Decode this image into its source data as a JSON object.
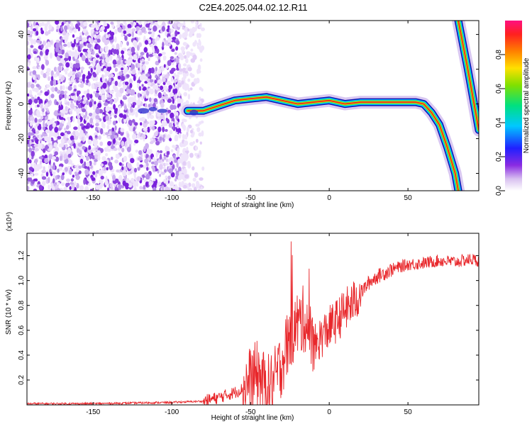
{
  "title": "C2E4.2025.044.02.12.R11",
  "chart_data": [
    {
      "type": "heatmap",
      "title": "C2E4.2025.044.02.12.R11",
      "xlabel": "Height of straight line (km)",
      "ylabel": "Frequency (Hz)",
      "xlim": [
        -192,
        95
      ],
      "ylim": [
        -50,
        48
      ],
      "xticks": [
        -150,
        -100,
        -50,
        0,
        50
      ],
      "yticks": [
        -40,
        -20,
        0,
        20,
        40
      ],
      "noise_region_x": [
        -192,
        -80
      ],
      "ridge": [
        [
          -90,
          -4
        ],
        [
          -80,
          -4
        ],
        [
          -70,
          -1
        ],
        [
          -60,
          2
        ],
        [
          -50,
          3
        ],
        [
          -40,
          4
        ],
        [
          -30,
          2
        ],
        [
          -20,
          0
        ],
        [
          -10,
          1
        ],
        [
          0,
          2
        ],
        [
          10,
          0
        ],
        [
          20,
          1
        ],
        [
          40,
          1
        ],
        [
          55,
          1
        ],
        [
          60,
          0
        ],
        [
          65,
          -5
        ],
        [
          70,
          -12
        ],
        [
          75,
          -25
        ],
        [
          80,
          -40
        ],
        [
          82,
          -50
        ]
      ],
      "second_ridge": [
        [
          82,
          48
        ],
        [
          88,
          20
        ],
        [
          93,
          -5
        ],
        [
          95,
          -15
        ]
      ],
      "colorbar": {
        "label": "Normalized spectral amplitude",
        "range": [
          0,
          1
        ],
        "ticks": [
          "0.0",
          "0.2",
          "0.4",
          "0.6",
          "0.8"
        ]
      }
    },
    {
      "type": "line",
      "xlabel": "Height of straight line (km)",
      "ylabel": "SNR (10 * v/v)",
      "y_multiplier": "(x10⁴)",
      "xlim": [
        -192,
        95
      ],
      "ylim": [
        0,
        1.38
      ],
      "xticks": [
        -150,
        -100,
        -50,
        0,
        50
      ],
      "yticks": [
        "0.2",
        "0.4",
        "0.6",
        "0.8",
        "1.0",
        "1.2"
      ],
      "color": "#e8262a",
      "series": [
        {
          "x": [
            -192,
            -150,
            -100,
            -80,
            -70,
            -60,
            -55,
            -50,
            -45,
            -40,
            -35,
            -30,
            -25,
            -20,
            -15,
            -10,
            -5,
            0,
            5,
            10,
            15,
            20,
            25,
            30,
            40,
            50,
            60,
            70,
            80,
            90,
            95
          ],
          "y": [
            0.01,
            0.01,
            0.02,
            0.03,
            0.06,
            0.1,
            0.13,
            0.2,
            0.25,
            0.12,
            0.18,
            0.35,
            0.55,
            0.65,
            0.7,
            0.45,
            0.55,
            0.62,
            0.68,
            0.76,
            0.82,
            0.9,
            0.98,
            1.03,
            1.09,
            1.13,
            1.14,
            1.16,
            1.15,
            1.17,
            1.16
          ]
        }
      ]
    }
  ]
}
